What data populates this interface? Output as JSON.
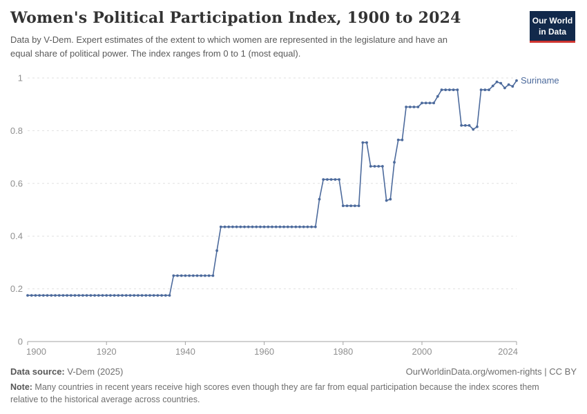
{
  "header": {
    "title": "Women's Political Participation Index, 1900 to 2024",
    "subtitle_line1": "Data by V-Dem. Expert estimates of the extent to which women are represented in the legislature and have an",
    "subtitle_line2": "equal share of political power. The index ranges from 0 to 1 (most equal)."
  },
  "logo": {
    "line1": "Our World",
    "line2": "in Data",
    "bg_color": "#12294b",
    "accent_color": "#cf3530"
  },
  "footer": {
    "source_label": "Data source:",
    "source_value": " V-Dem (2025)",
    "rights": "OurWorldinData.org/women-rights | CC BY",
    "note_label": "Note:",
    "note_line1": " Many countries in recent years receive high scores even though they are far from equal participation because the index scores them",
    "note_line2": "relative to the historical average across countries."
  },
  "chart_data": {
    "type": "line",
    "title": "Women's Political Participation Index, 1900 to 2024",
    "entity": "Suriname",
    "xlabel": "",
    "ylabel": "",
    "xlim": [
      1900,
      2024
    ],
    "ylim": [
      0,
      1
    ],
    "grid": "dashed horizontal",
    "legend_position": "end-of-line label",
    "colors": {
      "line": "#4c6a9c",
      "grid": "#e0e0e0",
      "axis": "#a3a3a3",
      "tick_text": "#8f8f8f"
    },
    "y_ticks": [
      {
        "v": 0,
        "label": "0"
      },
      {
        "v": 0.2,
        "label": "0.2"
      },
      {
        "v": 0.4,
        "label": "0.4"
      },
      {
        "v": 0.6,
        "label": "0.6"
      },
      {
        "v": 0.8,
        "label": "0.8"
      },
      {
        "v": 1,
        "label": "1"
      }
    ],
    "x_ticks": [
      {
        "year": 1900,
        "label": "1900",
        "align": "start"
      },
      {
        "year": 1920,
        "label": "1920",
        "align": "middle"
      },
      {
        "year": 1940,
        "label": "1940",
        "align": "middle"
      },
      {
        "year": 1960,
        "label": "1960",
        "align": "middle"
      },
      {
        "year": 1980,
        "label": "1980",
        "align": "middle"
      },
      {
        "year": 2000,
        "label": "2000",
        "align": "middle"
      },
      {
        "year": 2024,
        "label": "2024",
        "align": "end"
      }
    ],
    "points": [
      [
        1900,
        0.175
      ],
      [
        1901,
        0.175
      ],
      [
        1902,
        0.175
      ],
      [
        1903,
        0.175
      ],
      [
        1904,
        0.175
      ],
      [
        1905,
        0.175
      ],
      [
        1906,
        0.175
      ],
      [
        1907,
        0.175
      ],
      [
        1908,
        0.175
      ],
      [
        1909,
        0.175
      ],
      [
        1910,
        0.175
      ],
      [
        1911,
        0.175
      ],
      [
        1912,
        0.175
      ],
      [
        1913,
        0.175
      ],
      [
        1914,
        0.175
      ],
      [
        1915,
        0.175
      ],
      [
        1916,
        0.175
      ],
      [
        1917,
        0.175
      ],
      [
        1918,
        0.175
      ],
      [
        1919,
        0.175
      ],
      [
        1920,
        0.175
      ],
      [
        1921,
        0.175
      ],
      [
        1922,
        0.175
      ],
      [
        1923,
        0.175
      ],
      [
        1924,
        0.175
      ],
      [
        1925,
        0.175
      ],
      [
        1926,
        0.175
      ],
      [
        1927,
        0.175
      ],
      [
        1928,
        0.175
      ],
      [
        1929,
        0.175
      ],
      [
        1930,
        0.175
      ],
      [
        1931,
        0.175
      ],
      [
        1932,
        0.175
      ],
      [
        1933,
        0.175
      ],
      [
        1934,
        0.175
      ],
      [
        1935,
        0.175
      ],
      [
        1936,
        0.175
      ],
      [
        1937,
        0.25
      ],
      [
        1938,
        0.25
      ],
      [
        1939,
        0.25
      ],
      [
        1940,
        0.25
      ],
      [
        1941,
        0.25
      ],
      [
        1942,
        0.25
      ],
      [
        1943,
        0.25
      ],
      [
        1944,
        0.25
      ],
      [
        1945,
        0.25
      ],
      [
        1946,
        0.25
      ],
      [
        1947,
        0.25
      ],
      [
        1948,
        0.345
      ],
      [
        1949,
        0.435
      ],
      [
        1950,
        0.435
      ],
      [
        1951,
        0.435
      ],
      [
        1952,
        0.435
      ],
      [
        1953,
        0.435
      ],
      [
        1954,
        0.435
      ],
      [
        1955,
        0.435
      ],
      [
        1956,
        0.435
      ],
      [
        1957,
        0.435
      ],
      [
        1958,
        0.435
      ],
      [
        1959,
        0.435
      ],
      [
        1960,
        0.435
      ],
      [
        1961,
        0.435
      ],
      [
        1962,
        0.435
      ],
      [
        1963,
        0.435
      ],
      [
        1964,
        0.435
      ],
      [
        1965,
        0.435
      ],
      [
        1966,
        0.435
      ],
      [
        1967,
        0.435
      ],
      [
        1968,
        0.435
      ],
      [
        1969,
        0.435
      ],
      [
        1970,
        0.435
      ],
      [
        1971,
        0.435
      ],
      [
        1972,
        0.435
      ],
      [
        1973,
        0.435
      ],
      [
        1974,
        0.54
      ],
      [
        1975,
        0.615
      ],
      [
        1976,
        0.615
      ],
      [
        1977,
        0.615
      ],
      [
        1978,
        0.615
      ],
      [
        1979,
        0.615
      ],
      [
        1980,
        0.515
      ],
      [
        1981,
        0.515
      ],
      [
        1982,
        0.515
      ],
      [
        1983,
        0.515
      ],
      [
        1984,
        0.515
      ],
      [
        1985,
        0.755
      ],
      [
        1986,
        0.755
      ],
      [
        1987,
        0.665
      ],
      [
        1988,
        0.665
      ],
      [
        1989,
        0.665
      ],
      [
        1990,
        0.665
      ],
      [
        1991,
        0.535
      ],
      [
        1992,
        0.54
      ],
      [
        1993,
        0.68
      ],
      [
        1994,
        0.765
      ],
      [
        1995,
        0.765
      ],
      [
        1996,
        0.89
      ],
      [
        1997,
        0.89
      ],
      [
        1998,
        0.89
      ],
      [
        1999,
        0.89
      ],
      [
        2000,
        0.905
      ],
      [
        2001,
        0.905
      ],
      [
        2002,
        0.905
      ],
      [
        2003,
        0.905
      ],
      [
        2004,
        0.93
      ],
      [
        2005,
        0.955
      ],
      [
        2006,
        0.955
      ],
      [
        2007,
        0.955
      ],
      [
        2008,
        0.955
      ],
      [
        2009,
        0.955
      ],
      [
        2010,
        0.82
      ],
      [
        2011,
        0.82
      ],
      [
        2012,
        0.82
      ],
      [
        2013,
        0.805
      ],
      [
        2014,
        0.815
      ],
      [
        2015,
        0.955
      ],
      [
        2016,
        0.955
      ],
      [
        2017,
        0.955
      ],
      [
        2018,
        0.97
      ],
      [
        2019,
        0.985
      ],
      [
        2020,
        0.98
      ],
      [
        2021,
        0.962
      ],
      [
        2022,
        0.975
      ],
      [
        2023,
        0.968
      ],
      [
        2024,
        0.99
      ]
    ]
  }
}
